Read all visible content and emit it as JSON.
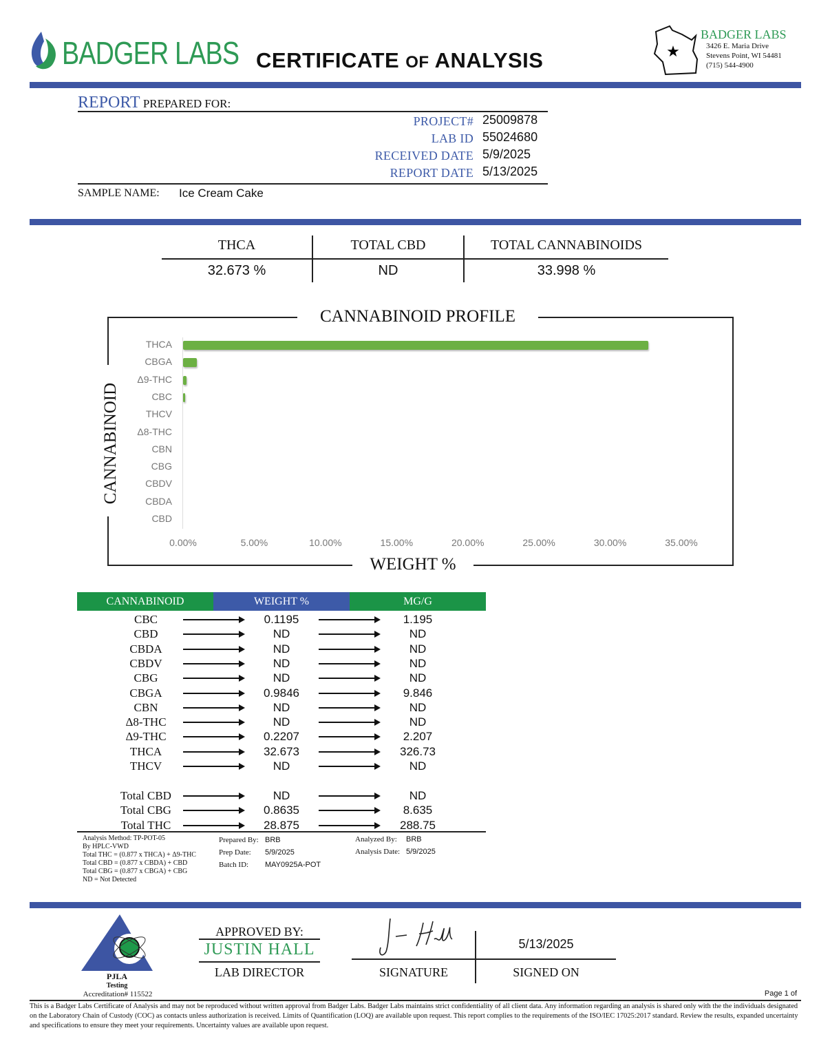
{
  "header": {
    "logo_text": "BADGER LABS",
    "title_part1": "CERTIFICATE",
    "title_part2": "OF",
    "title_part3": "ANALYSIS",
    "lab_name": "BADGER LABS",
    "address1": "3426 E. Maria Drive",
    "address2": "Stevens Point, WI 54481",
    "phone": "(715) 544-4900"
  },
  "report": {
    "heading_colored": "REPORT",
    "heading_rest": "PREPARED FOR:",
    "fields": [
      {
        "label": "PROJECT#",
        "value": "25009878"
      },
      {
        "label": "LAB ID",
        "value": "55024680"
      },
      {
        "label": "RECEIVED DATE",
        "value": "5/9/2025"
      },
      {
        "label": "REPORT DATE",
        "value": "5/13/2025"
      }
    ],
    "sample_label": "SAMPLE NAME:",
    "sample_name": "Ice Cream Cake"
  },
  "summary": [
    {
      "label": "THCA",
      "value": "32.673 %"
    },
    {
      "label": "TOTAL CBD",
      "value": "ND"
    },
    {
      "label": "TOTAL CANNABINOIDS",
      "value": "33.998 %"
    }
  ],
  "chart_data": {
    "type": "bar",
    "orientation": "horizontal",
    "title": "CANNABINOID PROFILE",
    "xlabel": "WEIGHT %",
    "ylabel": "CANNABINOID",
    "categories": [
      "THCA",
      "CBGA",
      "Δ9-THC",
      "CBC",
      "THCV",
      "Δ8-THC",
      "CBN",
      "CBG",
      "CBDV",
      "CBDA",
      "CBD"
    ],
    "values": [
      32.673,
      0.9846,
      0.2207,
      0.1195,
      0,
      0,
      0,
      0,
      0,
      0,
      0
    ],
    "xlim": [
      0,
      35
    ],
    "xticks": [
      "0.00%",
      "5.00%",
      "10.00%",
      "15.00%",
      "20.00%",
      "25.00%",
      "30.00%",
      "35.00%"
    ],
    "grid": false,
    "bar_color": "#6cb043"
  },
  "table": {
    "headers": [
      "CANNABINOID",
      "WEIGHT %",
      "MG/G"
    ],
    "header_colors": [
      "#1b9447",
      "#3d5aa8",
      "#1b9447"
    ],
    "rows": [
      [
        "CBC",
        "0.1195",
        "1.195"
      ],
      [
        "CBD",
        "ND",
        "ND"
      ],
      [
        "CBDA",
        "ND",
        "ND"
      ],
      [
        "CBDV",
        "ND",
        "ND"
      ],
      [
        "CBG",
        "ND",
        "ND"
      ],
      [
        "CBGA",
        "0.9846",
        "9.846"
      ],
      [
        "CBN",
        "ND",
        "ND"
      ],
      [
        "Δ8-THC",
        "ND",
        "ND"
      ],
      [
        "Δ9-THC",
        "0.2207",
        "2.207"
      ],
      [
        "THCA",
        "32.673",
        "326.73"
      ],
      [
        "THCV",
        "ND",
        "ND"
      ]
    ],
    "totals": [
      [
        "Total CBD",
        "ND",
        "ND"
      ],
      [
        "Total CBG",
        "0.8635",
        "8.635"
      ],
      [
        "Total THC",
        "28.875",
        "288.75"
      ]
    ]
  },
  "method": {
    "lines": [
      "Analysis Method: TP-POT-05",
      "By HPLC-VWD",
      "Total THC = (0.877 x  THCA) + Δ9-THC",
      "Total CBD = (0.877 x  CBDA) + CBD",
      "Total CBG = (0.877 x  CBGA) + CBG",
      "ND = Not Detected"
    ],
    "prepared_by_label": "Prepared By:",
    "prepared_by": "BRB",
    "prep_date_label": "Prep Date:",
    "prep_date": "5/9/2025",
    "batch_label": "Batch ID:",
    "batch": "MAY0925A-POT",
    "analyzed_by_label": "Analyzed By:",
    "analyzed_by": "BRB",
    "analysis_date_label": "Analysis Date:",
    "analysis_date": "5/9/2025"
  },
  "approval": {
    "pjla": "PJLA",
    "testing": "Testing",
    "accreditation": "Accreditation# 115522",
    "approved_by": "APPROVED BY:",
    "name": "JUSTIN HALL",
    "role": "LAB DIRECTOR",
    "signature_label": "SIGNATURE",
    "signed_on_label": "SIGNED ON",
    "signed_date": "5/13/2025",
    "signature_text": "J. Hall"
  },
  "footer": {
    "page": "Page 1 of",
    "disclaimer": "This is a Badger Labs Certificate of Analysis and may not be reproduced without written approval from Badger Labs. Badger Labs maintains strict confidentiality of all client data. Any information regarding an analysis is shared only with the the individuals designated on the Laboratory Chain of Custody (COC) as contacts unless authorization is received. Limits of Quantification (LOQ) are available upon request. This report complies to the requirements of the ISO/IEC 17025:2017 standard. Review the results, expanded uncertainty and specifications to ensure they meet your requirements. Uncertainty values are available upon request."
  }
}
